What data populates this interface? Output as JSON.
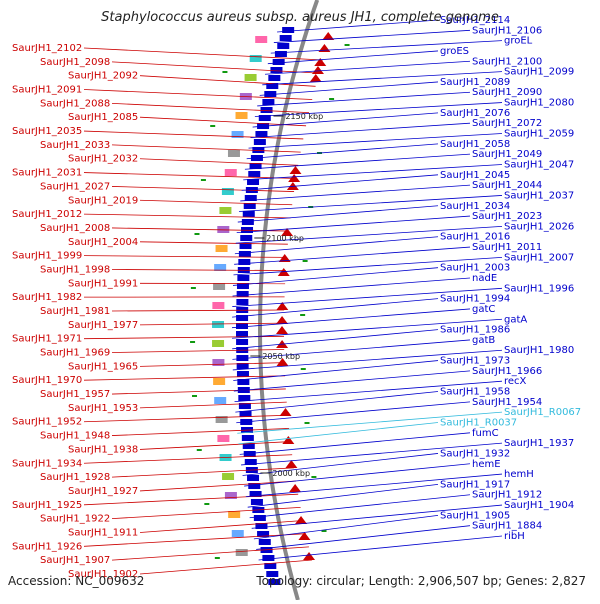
{
  "title": "Staphylococcus aureus subsp. aureus JH1, complete genome",
  "accession": "Accession: NC_009632",
  "summary": "Topology: circular; Length: 2,906,507 bp; Genes: 2,827",
  "colors": {
    "reverse": "#cc0000",
    "forward": "#0000cc",
    "rna": "#33bbdd",
    "backbone": "#888888"
  },
  "ticks": [
    "2150 kbp",
    "2100 kbp",
    "2050 kbp",
    "2000 kbp"
  ],
  "left_labels": [
    "SaurJH1_2102",
    "SaurJH1_2098",
    "SaurJH1_2092",
    "SaurJH1_2091",
    "SaurJH1_2088",
    "SaurJH1_2085",
    "SaurJH1_2035",
    "SaurJH1_2033",
    "SaurJH1_2032",
    "SaurJH1_2031",
    "SaurJH1_2027",
    "SaurJH1_2019",
    "SaurJH1_2012",
    "SaurJH1_2008",
    "SaurJH1_2004",
    "SaurJH1_1999",
    "SaurJH1_1998",
    "SaurJH1_1991",
    "SaurJH1_1982",
    "SaurJH1_1981",
    "SaurJH1_1977",
    "SaurJH1_1971",
    "SaurJH1_1969",
    "SaurJH1_1965",
    "SaurJH1_1970",
    "SaurJH1_1957",
    "SaurJH1_1953",
    "SaurJH1_1952",
    "SaurJH1_1948",
    "SaurJH1_1938",
    "SaurJH1_1934",
    "SaurJH1_1928",
    "SaurJH1_1927",
    "SaurJH1_1925",
    "SaurJH1_1922",
    "SaurJH1_1911",
    "SaurJH1_1926",
    "SaurJH1_1907",
    "SaurJH1_1902"
  ],
  "right_labels": [
    "SaurJH1_2114",
    "SaurJH1_2106",
    "groEL",
    "groES",
    "SaurJH1_2100",
    "SaurJH1_2099",
    "SaurJH1_2089",
    "SaurJH1_2090",
    "SaurJH1_2080",
    "SaurJH1_2076",
    "SaurJH1_2072",
    "SaurJH1_2059",
    "SaurJH1_2058",
    "SaurJH1_2049",
    "SaurJH1_2047",
    "SaurJH1_2045",
    "SaurJH1_2044",
    "SaurJH1_2037",
    "SaurJH1_2034",
    "SaurJH1_2023",
    "SaurJH1_2026",
    "SaurJH1_2016",
    "SaurJH1_2011",
    "SaurJH1_2007",
    "SaurJH1_2003",
    "nadE",
    "SaurJH1_1996",
    "SaurJH1_1994",
    "gatC",
    "gatA",
    "SaurJH1_1986",
    "gatB",
    "SaurJH1_1980",
    "SaurJH1_1973",
    "SaurJH1_1966",
    "recX",
    "SaurJH1_1958",
    "SaurJH1_1954",
    "SaurJH1_R0067",
    "SaurJH1_R0037",
    "fumC",
    "SaurJH1_1937",
    "SaurJH1_1932",
    "hemE",
    "hemH",
    "SaurJH1_1917",
    "SaurJH1_1912",
    "SaurJH1_1904",
    "SaurJH1_1905",
    "SaurJH1_1884",
    "ribH"
  ],
  "rna_labels": [
    "SaurJH1_R0067",
    "SaurJH1_R0037"
  ]
}
